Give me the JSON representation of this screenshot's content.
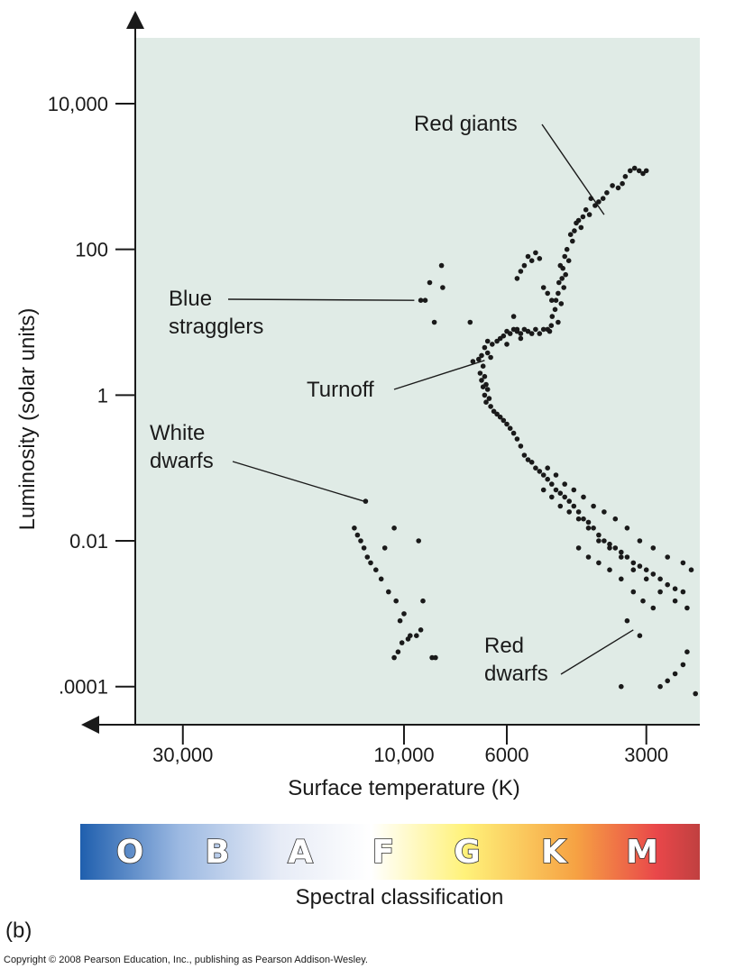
{
  "panel_label": "(b)",
  "copyright": "Copyright © 2008 Pearson Education, Inc., publishing as Pearson Addison-Wesley.",
  "colors": {
    "plot_background": "#e0ebe6",
    "points": "#1a1a1a",
    "spectrum": [
      "#1f5fae",
      "#9cb9e2",
      "#e6ebf6",
      "#ffffff",
      "#fff27a",
      "#f6a243",
      "#e9474a",
      "#c04040"
    ]
  },
  "spectral": {
    "title": "Spectral classification",
    "letters": [
      "O",
      "B",
      "A",
      "F",
      "G",
      "K",
      "M"
    ]
  },
  "chart_data": {
    "type": "scatter",
    "title": "",
    "xlabel": "Surface temperature (K)",
    "ylabel": "Luminosity (solar units)",
    "x_scale": "log",
    "x_reversed": true,
    "y_scale": "log",
    "xlim": [
      38000,
      2300
    ],
    "ylim": [
      3e-05,
      80000
    ],
    "x_ticks": [
      {
        "value": 30000,
        "label": "30,000"
      },
      {
        "value": 10000,
        "label": "10,000"
      },
      {
        "value": 6000,
        "label": "6000"
      },
      {
        "value": 3000,
        "label": "3000"
      }
    ],
    "y_ticks": [
      {
        "value": 10000,
        "label": "10,000"
      },
      {
        "value": 100,
        "label": "100"
      },
      {
        "value": 1,
        "label": "1"
      },
      {
        "value": 0.01,
        "label": "0.01"
      },
      {
        "value": 0.0001,
        "label": ".0001"
      }
    ],
    "grid": false,
    "legend": "none",
    "annotations": [
      {
        "lines": [
          "Red giants"
        ],
        "point_to": [
          3700,
          300
        ]
      },
      {
        "lines": [
          "Blue",
          "stragglers"
        ],
        "point_to": [
          9500,
          20
        ]
      },
      {
        "lines": [
          "Turnoff"
        ],
        "point_to": [
          6700,
          3.0
        ]
      },
      {
        "lines": [
          "White",
          "dwarfs"
        ],
        "point_to": [
          12200,
          0.035
        ]
      },
      {
        "lines": [
          "Red",
          "dwarfs"
        ],
        "point_to": [
          3200,
          0.0006
        ]
      }
    ],
    "series": [
      {
        "points": [
          [
            3180,
            1300
          ],
          [
            3110,
            1200
          ],
          [
            3050,
            1100
          ],
          [
            3000,
            1200
          ],
          [
            3250,
            1200
          ],
          [
            3330,
            1000
          ],
          [
            3380,
            800
          ],
          [
            3450,
            700
          ],
          [
            3550,
            750
          ],
          [
            3650,
            600
          ],
          [
            3720,
            500
          ],
          [
            3800,
            450
          ],
          [
            3870,
            400
          ],
          [
            3950,
            500
          ],
          [
            4050,
            350
          ],
          [
            3980,
            300
          ],
          [
            4110,
            280
          ],
          [
            4200,
            250
          ],
          [
            4150,
            200
          ],
          [
            4290,
            180
          ],
          [
            4250,
            230
          ],
          [
            4370,
            160
          ],
          [
            4330,
            130
          ],
          [
            4450,
            100
          ],
          [
            4500,
            80
          ],
          [
            4410,
            70
          ],
          [
            4540,
            55
          ],
          [
            4600,
            60
          ],
          [
            4480,
            45
          ],
          [
            4560,
            40
          ],
          [
            4630,
            35
          ],
          [
            4520,
            30
          ],
          [
            4650,
            25
          ],
          [
            4700,
            20
          ],
          [
            4580,
            18
          ],
          [
            4720,
            15
          ],
          [
            4790,
            12
          ],
          [
            4650,
            10
          ],
          [
            4810,
            9
          ],
          [
            4900,
            8
          ],
          [
            4850,
            7.5
          ],
          [
            5000,
            8
          ],
          [
            5100,
            7
          ],
          [
            5200,
            8
          ],
          [
            5300,
            7
          ],
          [
            5400,
            7.5
          ],
          [
            5500,
            8
          ],
          [
            5600,
            7
          ],
          [
            5700,
            7.5
          ],
          [
            5800,
            8
          ],
          [
            5900,
            7
          ],
          [
            6000,
            7.5
          ],
          [
            6100,
            6.5
          ],
          [
            6200,
            6
          ],
          [
            6300,
            5.5
          ],
          [
            6450,
            5
          ],
          [
            6600,
            5.5
          ],
          [
            6700,
            4.5
          ],
          [
            6800,
            3.5
          ],
          [
            6750,
            2.5
          ],
          [
            6850,
            2.0
          ],
          [
            6700,
            1.8
          ],
          [
            6800,
            1.6
          ],
          [
            6650,
            1.4
          ],
          [
            6750,
            1.3
          ],
          [
            6600,
            1.2
          ],
          [
            6700,
            1.0
          ],
          [
            6550,
            0.9
          ],
          [
            6650,
            0.8
          ],
          [
            6500,
            0.7
          ],
          [
            6400,
            0.6
          ],
          [
            6300,
            0.55
          ],
          [
            6200,
            0.5
          ],
          [
            6100,
            0.45
          ],
          [
            6000,
            0.4
          ],
          [
            5900,
            0.35
          ],
          [
            5800,
            0.3
          ],
          [
            5700,
            0.25
          ],
          [
            5600,
            0.2
          ],
          [
            5500,
            0.15
          ],
          [
            5400,
            0.13
          ],
          [
            5300,
            0.12
          ],
          [
            5200,
            0.1
          ],
          [
            5100,
            0.09
          ],
          [
            5000,
            0.08
          ],
          [
            4900,
            0.07
          ],
          [
            4800,
            0.06
          ],
          [
            4700,
            0.05
          ],
          [
            4600,
            0.045
          ],
          [
            4500,
            0.04
          ],
          [
            4400,
            0.035
          ],
          [
            4300,
            0.03
          ],
          [
            4200,
            0.025
          ],
          [
            4100,
            0.02
          ],
          [
            4000,
            0.018
          ],
          [
            3900,
            0.015
          ],
          [
            3800,
            0.012
          ],
          [
            3700,
            0.01
          ],
          [
            3600,
            0.009
          ],
          [
            3500,
            0.008
          ],
          [
            3400,
            0.007
          ],
          [
            3300,
            0.006
          ],
          [
            3200,
            0.005
          ],
          [
            3100,
            0.0045
          ],
          [
            3000,
            0.004
          ],
          [
            2900,
            0.0035
          ],
          [
            2800,
            0.003
          ],
          [
            2700,
            0.0025
          ],
          [
            2600,
            0.0022
          ],
          [
            2500,
            0.002
          ],
          [
            4900,
            0.1
          ],
          [
            4700,
            0.08
          ],
          [
            4500,
            0.06
          ],
          [
            4300,
            0.05
          ],
          [
            4100,
            0.04
          ],
          [
            3900,
            0.03
          ],
          [
            3700,
            0.025
          ],
          [
            3500,
            0.02
          ],
          [
            3300,
            0.015
          ],
          [
            3100,
            0.01
          ],
          [
            2900,
            0.008
          ],
          [
            2700,
            0.006
          ],
          [
            2500,
            0.005
          ],
          [
            2400,
            0.004
          ],
          [
            5000,
            0.05
          ],
          [
            4800,
            0.04
          ],
          [
            4600,
            0.03
          ],
          [
            4400,
            0.025
          ],
          [
            4200,
            0.02
          ],
          [
            4000,
            0.015
          ],
          [
            3800,
            0.01
          ],
          [
            3600,
            0.008
          ],
          [
            3400,
            0.006
          ],
          [
            3200,
            0.004
          ],
          [
            3000,
            0.003
          ],
          [
            2800,
            0.002
          ],
          [
            2600,
            0.0015
          ],
          [
            2450,
            0.0012
          ],
          [
            4200,
            0.008
          ],
          [
            4000,
            0.006
          ],
          [
            3800,
            0.005
          ],
          [
            3600,
            0.004
          ],
          [
            3400,
            0.003
          ],
          [
            3200,
            0.002
          ],
          [
            3050,
            0.0015
          ],
          [
            2900,
            0.0012
          ],
          [
            3300,
            0.0008
          ],
          [
            3100,
            0.0005
          ],
          [
            3400,
            0.0001
          ],
          [
            2500,
            0.0002
          ],
          [
            2600,
            0.00015
          ],
          [
            2700,
            0.00012
          ],
          [
            2800,
            0.0001
          ],
          [
            2350,
            8e-05
          ],
          [
            2450,
            0.0003
          ],
          [
            5400,
            80
          ],
          [
            5300,
            70
          ],
          [
            5500,
            60
          ],
          [
            5200,
            90
          ],
          [
            5100,
            75
          ],
          [
            5600,
            50
          ],
          [
            5700,
            40
          ],
          [
            5000,
            30
          ],
          [
            4900,
            25
          ],
          [
            4800,
            20
          ],
          [
            5800,
            12
          ],
          [
            5700,
            8
          ],
          [
            5600,
            6
          ],
          [
            6000,
            5
          ],
          [
            10500,
            0.00025
          ],
          [
            10300,
            0.0003
          ],
          [
            10100,
            0.0004
          ],
          [
            9800,
            0.00045
          ],
          [
            9700,
            0.0005
          ],
          [
            9400,
            0.0005
          ],
          [
            9200,
            0.0006
          ],
          [
            10200,
            0.0008
          ],
          [
            10000,
            0.001
          ],
          [
            10400,
            0.0015
          ],
          [
            10800,
            0.002
          ],
          [
            11200,
            0.003
          ],
          [
            11500,
            0.004
          ],
          [
            11800,
            0.005
          ],
          [
            12000,
            0.006
          ],
          [
            12200,
            0.008
          ],
          [
            12400,
            0.01
          ],
          [
            12600,
            0.012
          ],
          [
            12800,
            0.015
          ],
          [
            11000,
            0.008
          ],
          [
            10500,
            0.015
          ],
          [
            9300,
            0.01
          ],
          [
            12100,
            0.035
          ],
          [
            9100,
            0.0015
          ],
          [
            8700,
            0.00025
          ],
          [
            8550,
            0.00025
          ],
          [
            9000,
            20
          ],
          [
            9200,
            20
          ],
          [
            8600,
            10
          ],
          [
            8250,
            30
          ],
          [
            8300,
            60
          ],
          [
            7200,
            10
          ],
          [
            8800,
            35
          ],
          [
            6600,
            3.8
          ],
          [
            6500,
            3.3
          ],
          [
            6900,
            3.1
          ],
          [
            7100,
            2.9
          ]
        ]
      }
    ]
  }
}
